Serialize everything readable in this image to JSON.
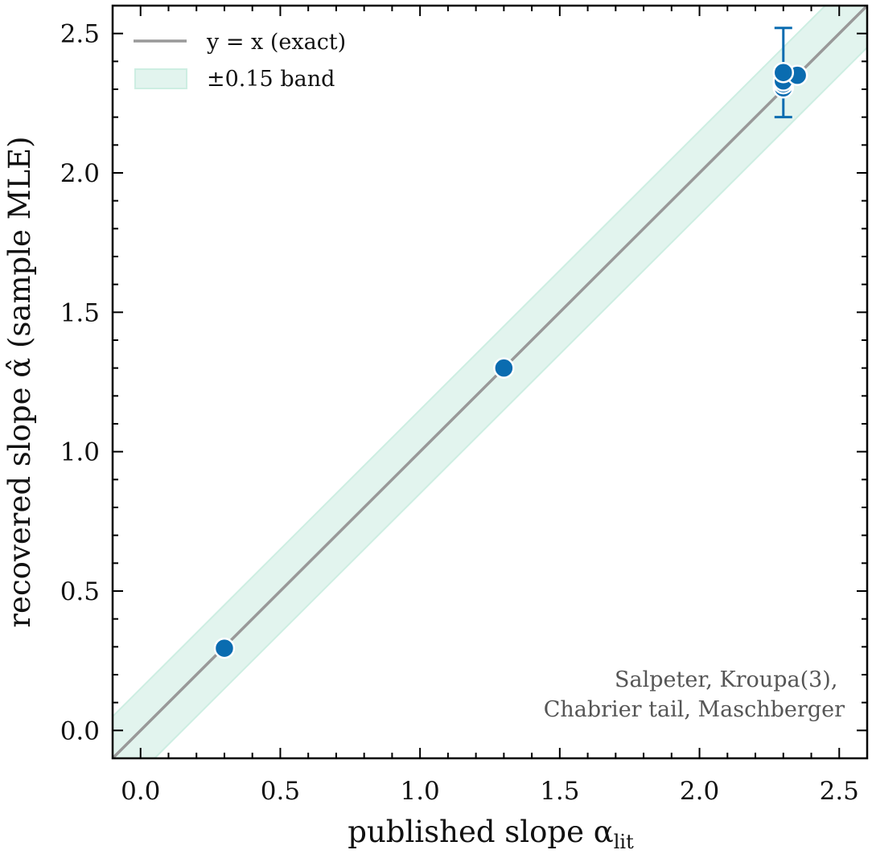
{
  "chart_data": {
    "type": "scatter",
    "xlabel": "published slope α",
    "xlabel_sub": "lit",
    "ylabel": "recovered slope α̂ (sample MLE)",
    "xlim": [
      -0.1,
      2.6
    ],
    "ylim": [
      -0.1,
      2.6
    ],
    "xticks": [
      0.0,
      0.5,
      1.0,
      1.5,
      2.0,
      2.5
    ],
    "yticks": [
      0.0,
      0.5,
      1.0,
      1.5,
      2.0,
      2.5
    ],
    "xtick_labels": [
      "0.0",
      "0.5",
      "1.0",
      "1.5",
      "2.0",
      "2.5"
    ],
    "ytick_labels": [
      "0.0",
      "0.5",
      "1.0",
      "1.5",
      "2.0",
      "2.5"
    ],
    "grid": false,
    "legend_position": "top-left",
    "legend": {
      "line_label": "y = x (exact)",
      "band_label": "±0.15 band"
    },
    "band_halfwidth": 0.15,
    "points": [
      {
        "x": 0.3,
        "y": 0.295
      },
      {
        "x": 1.3,
        "y": 1.3
      },
      {
        "x": 2.3,
        "y": 2.305
      },
      {
        "x": 2.3,
        "y": 2.32
      },
      {
        "x": 2.3,
        "y": 2.33
      },
      {
        "x": 2.35,
        "y": 2.35
      },
      {
        "x": 2.3,
        "y": 2.36,
        "yerr_low": 2.2,
        "yerr_high": 2.52
      }
    ],
    "annotation_lines": [
      "Salpeter, Kroupa(3),",
      "Chabrier tail, Maschberger"
    ],
    "colors": {
      "points": "#0a6cb0",
      "identity_line": "#999999",
      "band_fill": "#e2f4ee",
      "band_edge": "#cdeee2",
      "annotation": "#555555"
    }
  }
}
